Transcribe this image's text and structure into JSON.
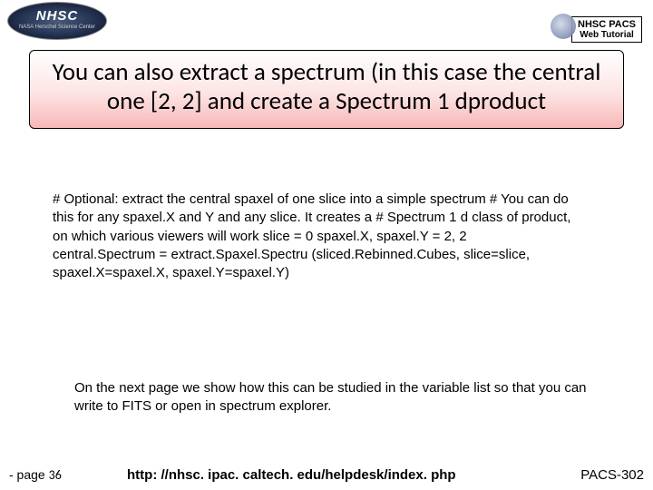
{
  "logo": {
    "text": "NHSC",
    "subtext": "NASA Herschel Science Center"
  },
  "header_label": {
    "line1": "NHSC PACS",
    "line2": "Web Tutorial"
  },
  "title": "You can also extract a spectrum (in this case the central one [2, 2] and create a Spectrum 1 dproduct",
  "code": "# Optional: extract the central spaxel of one slice into a simple spectrum\n#   You can do this for any spaxel.X and Y and any slice. It creates a\n#   Spectrum 1 d class of product, on which various viewers will work\nslice = 0\nspaxel.X, spaxel.Y = 2, 2\ncentral.Spectrum = extract.Spaxel.Spectru (sliced.Rebinned.Cubes, slice=slice, spaxel.X=spaxel.X, spaxel.Y=spaxel.Y)",
  "note": "On the next page we show how this can be studied in the variable list so that you can write to FITS or open in spectrum explorer.",
  "footer": {
    "left_prefix": "- page ",
    "page_number": "36",
    "center": "http: //nhsc. ipac. caltech. edu/helpdesk/index. php",
    "right": "PACS-302"
  },
  "colors": {
    "title_gradient_top": "#ffffff",
    "title_gradient_mid": "#fde4e4",
    "title_gradient_bottom": "#f7b8b8",
    "text": "#000000",
    "background": "#ffffff"
  },
  "fonts": {
    "title_family": "Calibri",
    "title_size_pt": 20,
    "body_family": "Arial",
    "body_size_pt": 11,
    "footer_size_pt": 11
  }
}
